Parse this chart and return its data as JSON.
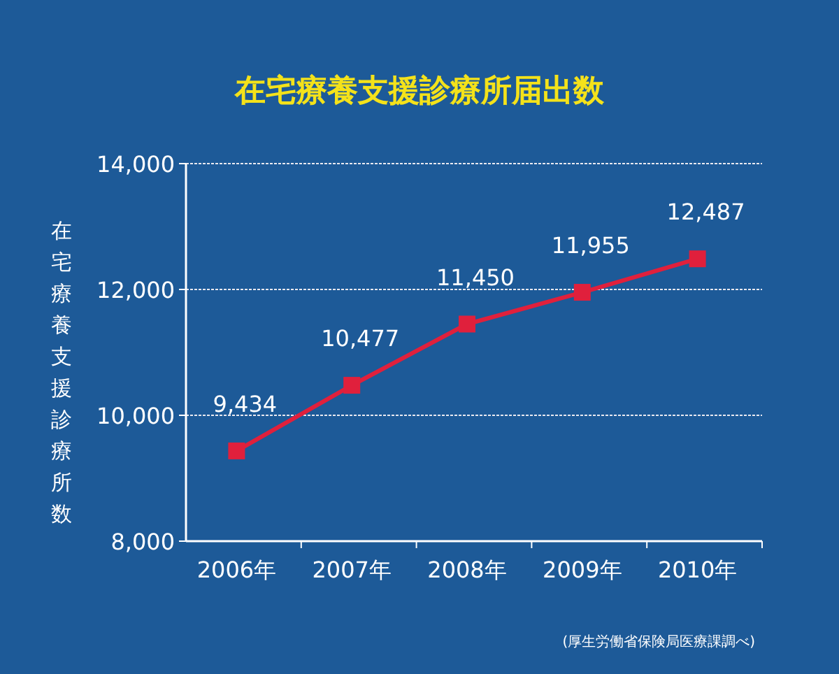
{
  "chart_data": {
    "type": "line",
    "title": "在宅療養支援診療所届出数",
    "ylabel": "在宅療養支援診療所数",
    "categories": [
      "2006年",
      "2007年",
      "2008年",
      "2009年",
      "2010年"
    ],
    "series": [
      {
        "color": "#e0203c",
        "values": [
          9434,
          10477,
          11450,
          11955,
          12487
        ]
      }
    ],
    "ylim": [
      8000,
      14000
    ],
    "yticks": [
      {
        "value": 8000,
        "label": "8,000"
      },
      {
        "value": 10000,
        "label": "10,000"
      },
      {
        "value": 12000,
        "label": "12,000"
      },
      {
        "value": 14000,
        "label": "14,000"
      }
    ],
    "grid": "y",
    "marker": "square",
    "line_style": "solid",
    "value_labels": [
      "9,434",
      "10,477",
      "11,450",
      "11,955",
      "12,487"
    ],
    "annotations": [
      "(厚生労働省保険局医療課調べ)"
    ]
  }
}
